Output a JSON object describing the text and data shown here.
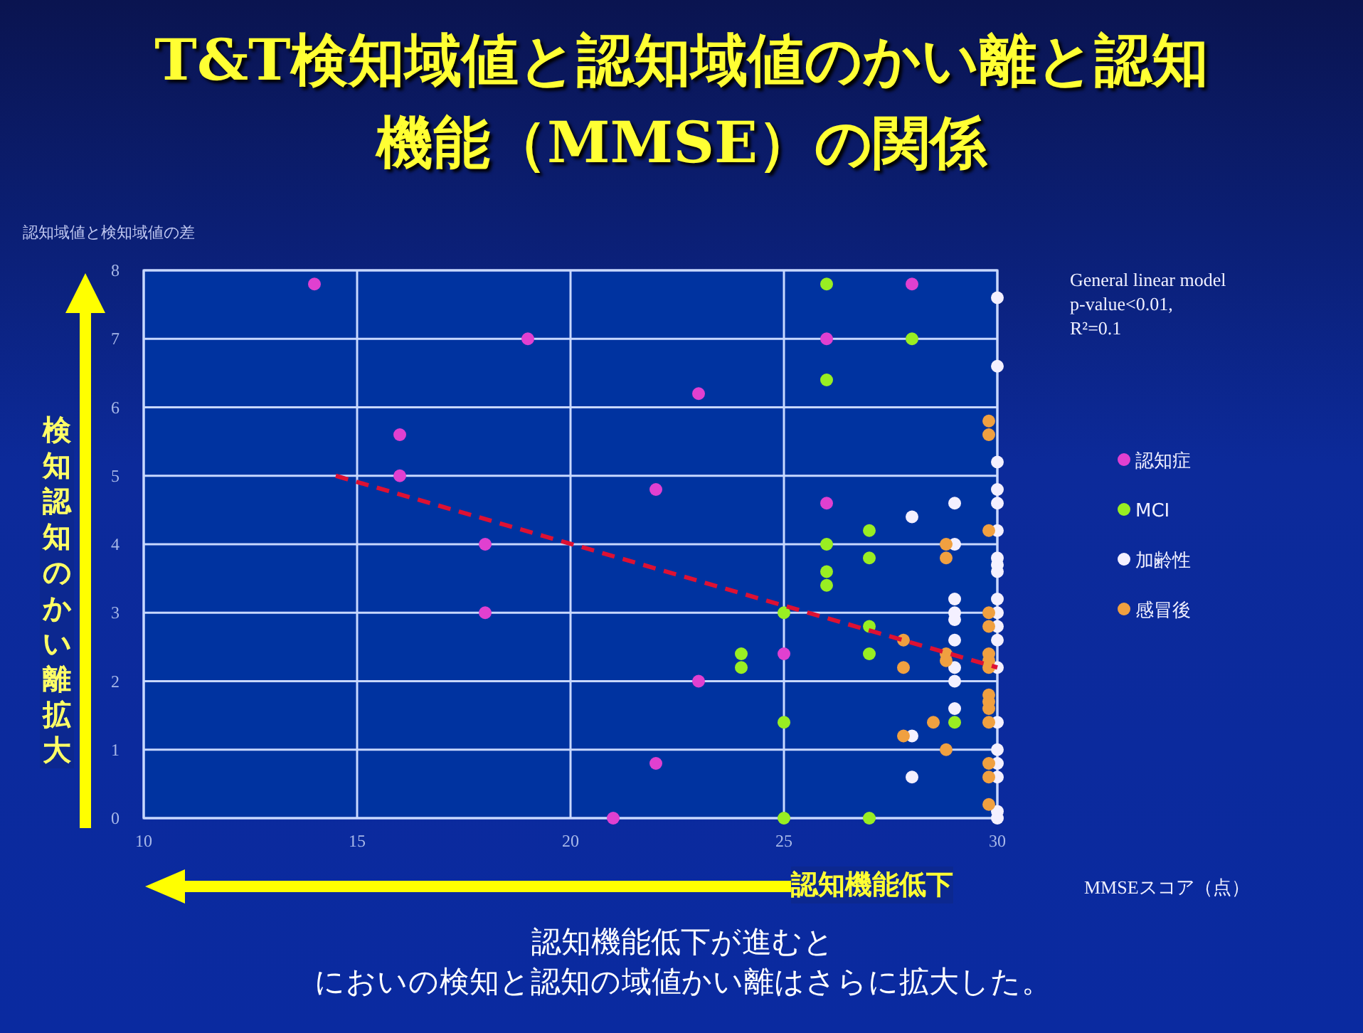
{
  "chart_data": {
    "type": "scatter",
    "title": "T&T検知域値と認知域値のかい離と認知機能（MMSE）の関係",
    "xlabel": "MMSEスコア（点）",
    "ylabel": "認知域値と検知域値の差",
    "annotations": [
      "General linear model\np-value<0.01,\nR²=0.1",
      "検知認知のかい離拡大",
      "認知機能低下",
      "認知機能低下が進むと",
      "においの検知と認知の域値かい離はさらに拡大した。"
    ],
    "xlim": [
      10,
      30
    ],
    "ylim": [
      0,
      8
    ],
    "xticks": [
      10,
      15,
      20,
      25,
      30
    ],
    "yticks": [
      0,
      1,
      2,
      3,
      4,
      5,
      6,
      7,
      8
    ],
    "grid": true,
    "legend": "right",
    "marker": "circle",
    "series": [
      {
        "name": "認知症",
        "color": "#e040d0",
        "x": [
          14,
          19,
          16,
          16,
          23,
          22,
          18,
          18,
          23,
          22,
          21,
          26,
          28,
          26,
          25
        ],
        "values": [
          7.8,
          7.0,
          5.6,
          5.0,
          6.2,
          4.8,
          4.0,
          3.0,
          2.0,
          0.8,
          0,
          7.0,
          7.8,
          4.6,
          2.4
        ]
      },
      {
        "name": "MCI",
        "color": "#99ee22",
        "x": [
          26,
          28,
          26,
          27,
          26,
          27,
          26,
          26,
          25,
          27,
          24,
          24,
          27,
          25,
          29,
          25,
          27
        ],
        "values": [
          7.8,
          7.0,
          6.4,
          4.2,
          4.0,
          3.8,
          3.6,
          3.4,
          3.0,
          2.8,
          2.4,
          2.2,
          2.4,
          1.4,
          1.4,
          0,
          0
        ]
      },
      {
        "name": "加齢性",
        "color": "#f4f0ff",
        "x": [
          30,
          30,
          30,
          30,
          30,
          29,
          28,
          29,
          30,
          30,
          30,
          30,
          29,
          30,
          29,
          29,
          30,
          30,
          29,
          30,
          29,
          30,
          29,
          29,
          30,
          28,
          30,
          30,
          30,
          28,
          30,
          30
        ],
        "values": [
          7.6,
          6.6,
          5.2,
          4.8,
          4.6,
          4.6,
          4.4,
          4.0,
          4.2,
          3.8,
          3.7,
          3.6,
          3.2,
          3.2,
          3.0,
          2.9,
          3.0,
          2.8,
          2.6,
          2.6,
          2.2,
          2.2,
          2.0,
          1.6,
          1.4,
          1.2,
          1.0,
          0.8,
          0.6,
          0.6,
          0.1,
          0
        ]
      },
      {
        "name": "感冒後",
        "color": "#f0a040",
        "x": [
          29.8,
          29.8,
          29.8,
          28.8,
          28.8,
          29.8,
          29.8,
          27.8,
          29.8,
          29.8,
          29.8,
          28.8,
          28.8,
          27.8,
          29.8,
          29.8,
          29.8,
          29.8,
          28.5,
          27.8,
          28.8,
          29.8,
          29.8,
          29.8
        ],
        "values": [
          5.8,
          5.6,
          4.2,
          4.0,
          3.8,
          3.0,
          2.8,
          2.6,
          2.4,
          2.3,
          2.2,
          2.4,
          2.3,
          2.2,
          1.8,
          1.7,
          1.6,
          1.4,
          1.4,
          1.2,
          1.0,
          0.8,
          0.6,
          0.2
        ]
      },
      {
        "type": "line",
        "line_style": "dashed",
        "marker": "none",
        "color": "#dd1133",
        "x": [
          14.5,
          30
        ],
        "values": [
          5.0,
          2.2
        ]
      }
    ]
  }
}
